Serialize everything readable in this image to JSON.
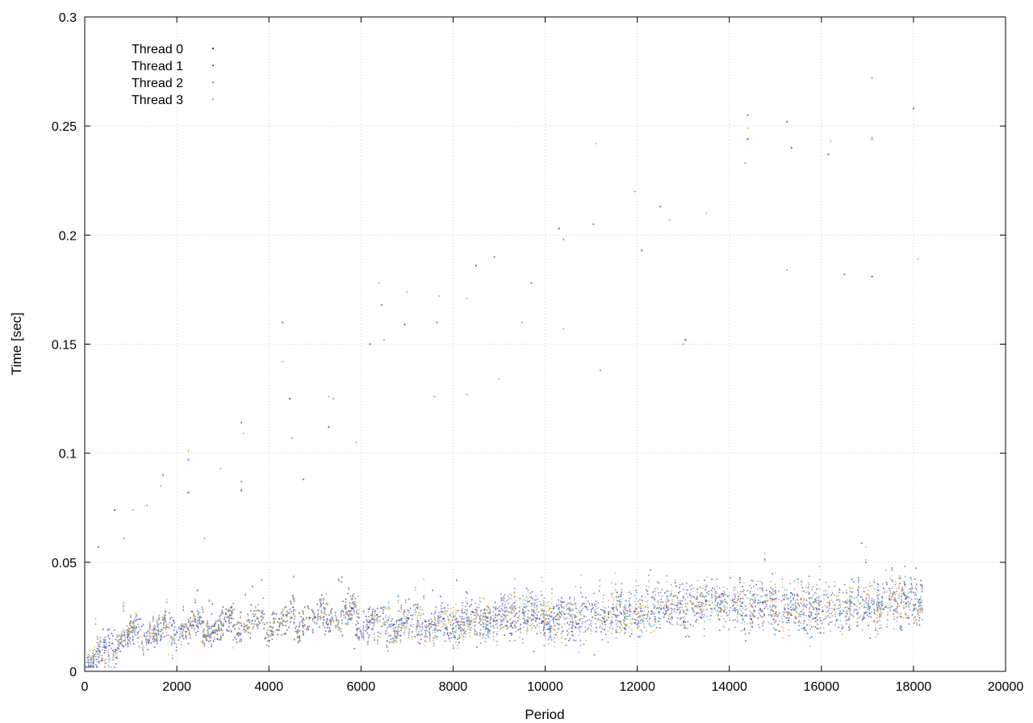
{
  "chart_data": {
    "type": "scatter",
    "title": "",
    "xlabel": "Period",
    "ylabel": "Time [sec]",
    "xlim": [
      0,
      20000
    ],
    "ylim": [
      0,
      0.3
    ],
    "xticks": [
      0,
      2000,
      4000,
      6000,
      8000,
      10000,
      12000,
      14000,
      16000,
      18000,
      20000
    ],
    "xtick_labels": [
      "0",
      "2000",
      "4000",
      "6000",
      "8000",
      "10000",
      "12000",
      "14000",
      "16000",
      "18000",
      "20000"
    ],
    "yticks": [
      0,
      0.05,
      0.1,
      0.15,
      0.2,
      0.25,
      0.3
    ],
    "ytick_labels": [
      "0",
      "0.05",
      "0.1",
      "0.15",
      "0.2",
      "0.25",
      "0.3"
    ],
    "grid": true,
    "legend_position": "top-left",
    "baseline": {
      "x": [
        0,
        300,
        600,
        800,
        1000,
        1500,
        2000,
        2500,
        3000,
        3500,
        4000,
        4500,
        5000,
        5300,
        5800,
        6000,
        6500,
        7000,
        7500,
        8000,
        8500,
        9000,
        9500,
        10000,
        10500,
        11000,
        11500,
        12000,
        12500,
        13000,
        13500,
        14000,
        14500,
        15000,
        15500,
        16000,
        16500,
        17000,
        17500,
        18000,
        18200
      ],
      "y": [
        0.005,
        0.007,
        0.01,
        0.016,
        0.017,
        0.018,
        0.019,
        0.02,
        0.021,
        0.022,
        0.022,
        0.023,
        0.024,
        0.025,
        0.025,
        0.022,
        0.022,
        0.021,
        0.022,
        0.022,
        0.023,
        0.024,
        0.025,
        0.024,
        0.024,
        0.025,
        0.026,
        0.027,
        0.028,
        0.029,
        0.031,
        0.032,
        0.03,
        0.029,
        0.029,
        0.029,
        0.03,
        0.031,
        0.031,
        0.032,
        0.029
      ]
    },
    "series": [
      {
        "name": "Thread 0",
        "color": "#1f3a93",
        "points": 1300,
        "outliers": [
          [
            650,
            0.074
          ],
          [
            2250,
            0.082
          ],
          [
            3400,
            0.083
          ],
          [
            4450,
            0.125
          ],
          [
            5300,
            0.112
          ],
          [
            6200,
            0.15
          ],
          [
            6950,
            0.159
          ],
          [
            8500,
            0.186
          ],
          [
            10300,
            0.203
          ],
          [
            12100,
            0.193
          ],
          [
            13050,
            0.152
          ],
          [
            14400,
            0.244
          ],
          [
            15350,
            0.24
          ],
          [
            16150,
            0.237
          ],
          [
            17100,
            0.181
          ],
          [
            18000,
            0.258
          ]
        ]
      },
      {
        "name": "Thread 1",
        "color": "#7a4fc4",
        "points": 1300,
        "outliers": [
          [
            300,
            0.057
          ],
          [
            1700,
            0.09
          ],
          [
            2250,
            0.097
          ],
          [
            3400,
            0.114
          ],
          [
            4300,
            0.16
          ],
          [
            4750,
            0.088
          ],
          [
            6450,
            0.168
          ],
          [
            7650,
            0.16
          ],
          [
            8900,
            0.19
          ],
          [
            9700,
            0.178
          ],
          [
            11050,
            0.205
          ],
          [
            12500,
            0.213
          ],
          [
            14400,
            0.255
          ],
          [
            15250,
            0.252
          ],
          [
            16500,
            0.182
          ],
          [
            17100,
            0.244
          ]
        ]
      },
      {
        "name": "Thread 2",
        "color": "#4aa3c0",
        "points": 1300,
        "outliers": [
          [
            850,
            0.061
          ],
          [
            1350,
            0.076
          ],
          [
            2600,
            0.061
          ],
          [
            3400,
            0.087
          ],
          [
            4500,
            0.107
          ],
          [
            5400,
            0.125
          ],
          [
            6500,
            0.152
          ],
          [
            7600,
            0.126
          ],
          [
            8300,
            0.127
          ],
          [
            9500,
            0.16
          ],
          [
            10400,
            0.198
          ],
          [
            11200,
            0.138
          ],
          [
            11950,
            0.22
          ],
          [
            13000,
            0.15
          ],
          [
            14350,
            0.233
          ],
          [
            15250,
            0.184
          ],
          [
            17100,
            0.272
          ]
        ]
      },
      {
        "name": "Thread 3",
        "color": "#d8a62a",
        "points": 1300,
        "outliers": [
          [
            1050,
            0.074
          ],
          [
            1650,
            0.085
          ],
          [
            2250,
            0.101
          ],
          [
            2950,
            0.093
          ],
          [
            3450,
            0.109
          ],
          [
            4300,
            0.142
          ],
          [
            5300,
            0.126
          ],
          [
            5900,
            0.105
          ],
          [
            6400,
            0.178
          ],
          [
            7000,
            0.174
          ],
          [
            7700,
            0.172
          ],
          [
            8300,
            0.171
          ],
          [
            9000,
            0.134
          ],
          [
            10400,
            0.157
          ],
          [
            11100,
            0.242
          ],
          [
            12700,
            0.207
          ],
          [
            13500,
            0.21
          ],
          [
            14400,
            0.249
          ],
          [
            16200,
            0.243
          ],
          [
            17100,
            0.245
          ],
          [
            18100,
            0.189
          ]
        ]
      }
    ]
  }
}
